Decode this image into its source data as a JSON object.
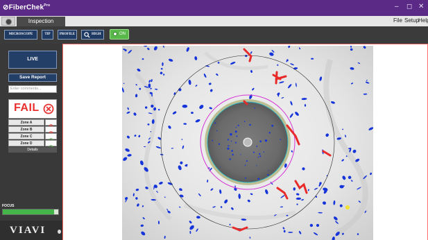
{
  "window": {
    "app_title": "FiberChek",
    "app_title_mark": "Pro",
    "minimize": "–",
    "restore": "◻",
    "close": "✕"
  },
  "tabs": {
    "active": "Inspection"
  },
  "menu": {
    "file": "File",
    "setup": "Setup",
    "help": "Help"
  },
  "toolbar": {
    "microscope": "MICROSCOPE",
    "tip": "TIP",
    "profile": "PROFILE",
    "magnification": "HIGH",
    "toggle": "ON"
  },
  "sidebar": {
    "live": "LIVE",
    "save_report": "Save Report",
    "comments_placeholder": "Enter comments..."
  },
  "result": {
    "status": "FAIL",
    "zones": [
      {
        "label": "Zone A",
        "status": "fail"
      },
      {
        "label": "Zone B",
        "status": "fail"
      },
      {
        "label": "Zone C",
        "status": "pass"
      },
      {
        "label": "Zone D",
        "status": "pass"
      }
    ],
    "details": "Details"
  },
  "focus": {
    "label": "FOCUS",
    "level": 0.93
  },
  "brand": "VIAVI",
  "colors": {
    "titlebar": "#5b2a86",
    "fail": "#e8302f",
    "pass": "#4aa33b",
    "defect_blue": "#1534d9",
    "defect_red": "#e82a2a",
    "ring_magenta": "#d533d5",
    "ring_cyan": "#27b4c8"
  }
}
